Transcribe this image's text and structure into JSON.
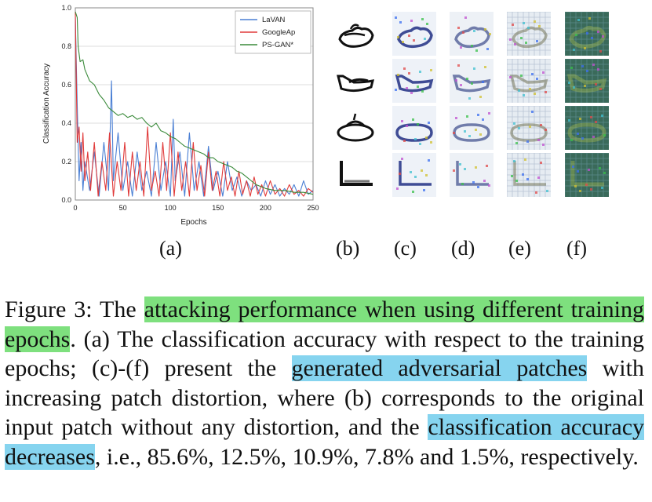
{
  "chart_data": {
    "type": "line",
    "xlabel": "Epochs",
    "ylabel": "Classification Accuracy",
    "xlim": [
      0,
      250
    ],
    "ylim": [
      0,
      1.0
    ],
    "xticks": [
      0,
      50,
      100,
      150,
      200,
      250
    ],
    "yticks": [
      "0.0",
      "0.2",
      "0.4",
      "0.6",
      "0.8",
      "1.0"
    ],
    "grid": true,
    "legend_position": "top-right",
    "series": [
      {
        "name": "LaVAN",
        "color": "#4a7fd4",
        "x": [
          0,
          2,
          4,
          6,
          8,
          10,
          15,
          20,
          25,
          30,
          35,
          38,
          40,
          45,
          50,
          55,
          60,
          65,
          70,
          75,
          80,
          85,
          90,
          95,
          100,
          103,
          105,
          110,
          115,
          120,
          125,
          130,
          135,
          140,
          145,
          150,
          155,
          160,
          165,
          170,
          175,
          180,
          185,
          190,
          195,
          200,
          205,
          210,
          215,
          220,
          225,
          230,
          235,
          240,
          245,
          250
        ],
        "values": [
          0.95,
          0.5,
          0.1,
          0.3,
          0.05,
          0.2,
          0.05,
          0.25,
          0.02,
          0.3,
          0.05,
          0.62,
          0.1,
          0.35,
          0.05,
          0.2,
          0.02,
          0.25,
          0.05,
          0.15,
          0.02,
          0.3,
          0.05,
          0.2,
          0.02,
          0.42,
          0.1,
          0.25,
          0.02,
          0.35,
          0.05,
          0.2,
          0.02,
          0.28,
          0.05,
          0.15,
          0.02,
          0.2,
          0.05,
          0.12,
          0.02,
          0.1,
          0.05,
          0.08,
          0.02,
          0.1,
          0.03,
          0.08,
          0.02,
          0.06,
          0.03,
          0.08,
          0.02,
          0.1,
          0.03,
          0.05
        ]
      },
      {
        "name": "GoogleAp",
        "color": "#e03a3a",
        "x": [
          0,
          2,
          4,
          6,
          8,
          10,
          13,
          16,
          20,
          24,
          28,
          32,
          36,
          40,
          44,
          48,
          52,
          56,
          60,
          64,
          68,
          72,
          76,
          80,
          84,
          88,
          92,
          96,
          100,
          104,
          108,
          112,
          116,
          120,
          124,
          128,
          132,
          136,
          140,
          144,
          148,
          152,
          156,
          160,
          164,
          168,
          172,
          176,
          180,
          184,
          188,
          192,
          196,
          200,
          205,
          210,
          215,
          220,
          225,
          230,
          235,
          240,
          245,
          250
        ],
        "values": [
          0.98,
          0.3,
          0.38,
          0.15,
          0.35,
          0.1,
          0.25,
          0.05,
          0.3,
          0.02,
          0.2,
          0.05,
          0.35,
          0.02,
          0.2,
          0.05,
          0.3,
          0.02,
          0.25,
          0.05,
          0.2,
          0.02,
          0.38,
          0.05,
          0.15,
          0.02,
          0.3,
          0.05,
          0.35,
          0.02,
          0.25,
          0.05,
          0.2,
          0.02,
          0.3,
          0.05,
          0.18,
          0.02,
          0.25,
          0.05,
          0.15,
          0.02,
          0.2,
          0.05,
          0.12,
          0.02,
          0.15,
          0.03,
          0.1,
          0.02,
          0.12,
          0.03,
          0.08,
          0.02,
          0.1,
          0.03,
          0.06,
          0.02,
          0.08,
          0.03,
          0.05,
          0.02,
          0.06,
          0.04
        ]
      },
      {
        "name": "PS-GAN*",
        "color": "#3a8a3a",
        "x": [
          0,
          2,
          3,
          5,
          8,
          10,
          15,
          20,
          25,
          30,
          35,
          40,
          45,
          50,
          55,
          60,
          65,
          70,
          75,
          80,
          85,
          90,
          95,
          100,
          105,
          110,
          115,
          120,
          125,
          130,
          135,
          140,
          145,
          150,
          155,
          160,
          165,
          170,
          175,
          180,
          185,
          190,
          195,
          200,
          210,
          220,
          230,
          240,
          250
        ],
        "values": [
          0.98,
          0.95,
          0.8,
          0.72,
          0.73,
          0.68,
          0.62,
          0.6,
          0.55,
          0.52,
          0.48,
          0.46,
          0.44,
          0.45,
          0.43,
          0.44,
          0.42,
          0.43,
          0.4,
          0.38,
          0.4,
          0.36,
          0.35,
          0.33,
          0.32,
          0.3,
          0.28,
          0.27,
          0.26,
          0.25,
          0.24,
          0.22,
          0.22,
          0.2,
          0.19,
          0.18,
          0.17,
          0.15,
          0.14,
          0.12,
          0.1,
          0.08,
          0.07,
          0.06,
          0.05,
          0.05,
          0.04,
          0.04,
          0.03
        ]
      }
    ]
  },
  "sublabels": {
    "a": "(a)",
    "b": "(b)",
    "c": "(c)",
    "d": "(d)",
    "e": "(e)",
    "f": "(f)"
  },
  "caption": {
    "p1": "Figure 3: The ",
    "h1": "attacking performance when using different training epochs",
    "p2": ". (a) The classification accuracy with respect to the training epochs; (c)-(f) present the ",
    "h2": "generated adversarial patches",
    "p3": " with increasing patch distortion, where (b) corresponds to the original input patch without any distortion, and the ",
    "h3": "classification accuracy decreases",
    "p4": ", i.e., 85.6%, 12.5%, 10.9%, 7.8% and 1.5%, respectively."
  },
  "colors": {
    "highlight_green": "#7ee07e",
    "highlight_blue": "#86d4ef"
  }
}
